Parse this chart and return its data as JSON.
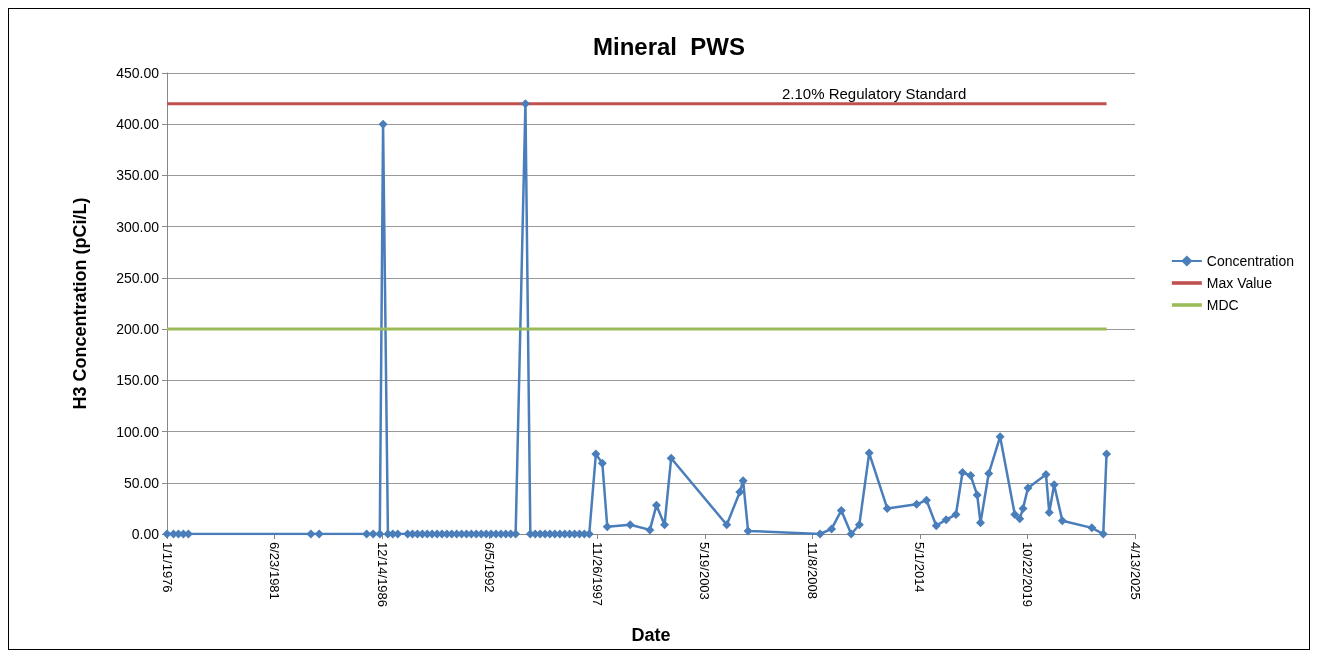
{
  "chart_data": {
    "type": "line",
    "title": "Mineral  PWS",
    "xlabel": "Date",
    "ylabel": "H3 Concentration (pCi/L)",
    "xlim": [
      "1976-01-01",
      "2025-04-13"
    ],
    "xticks": [
      {
        "value": "1976-01-01",
        "label": "1/1/1976"
      },
      {
        "value": "1981-06-23",
        "label": "6/23/1981"
      },
      {
        "value": "1986-12-14",
        "label": "12/14/1986"
      },
      {
        "value": "1992-06-05",
        "label": "6/5/1992"
      },
      {
        "value": "1997-11-26",
        "label": "11/26/1997"
      },
      {
        "value": "2003-05-19",
        "label": "5/19/2003"
      },
      {
        "value": "2008-11-08",
        "label": "11/8/2008"
      },
      {
        "value": "2014-05-01",
        "label": "5/1/2014"
      },
      {
        "value": "2019-10-22",
        "label": "10/22/2019"
      },
      {
        "value": "2025-04-13",
        "label": "4/13/2025"
      }
    ],
    "ylim": [
      0,
      450
    ],
    "yticks": [
      {
        "value": 0,
        "label": "0.00"
      },
      {
        "value": 50,
        "label": "50.00"
      },
      {
        "value": 100,
        "label": "100.00"
      },
      {
        "value": 150,
        "label": "150.00"
      },
      {
        "value": 200,
        "label": "200.00"
      },
      {
        "value": 250,
        "label": "250.00"
      },
      {
        "value": 300,
        "label": "300.00"
      },
      {
        "value": 350,
        "label": "350.00"
      },
      {
        "value": 400,
        "label": "400.00"
      },
      {
        "value": 450,
        "label": "450.00"
      }
    ],
    "grid": "y",
    "legend": "right",
    "annotations": [
      {
        "text": "2.10% Regulatory Standard",
        "x": "2012-01",
        "y": 420
      }
    ],
    "series": [
      {
        "name": "Concentration",
        "color": "#4a7ebb",
        "marker": "diamond",
        "x": [
          "1976-01",
          "1976-05",
          "1976-08",
          "1976-11",
          "1977-02",
          "1983-05",
          "1983-10",
          "1986-03",
          "1986-07",
          "1986-11",
          "1987-01",
          "1987-04",
          "1987-07",
          "1987-10",
          "1988-04",
          "1988-07",
          "1988-10",
          "1989-01",
          "1989-04",
          "1989-07",
          "1989-10",
          "1990-01",
          "1990-04",
          "1990-07",
          "1990-10",
          "1991-01",
          "1991-04",
          "1991-07",
          "1991-10",
          "1992-01",
          "1992-04",
          "1992-07",
          "1992-10",
          "1993-01",
          "1993-04",
          "1993-07",
          "1993-10",
          "1994-04",
          "1994-07",
          "1994-10",
          "1995-01",
          "1995-04",
          "1995-07",
          "1995-10",
          "1996-01",
          "1996-04",
          "1996-07",
          "1996-10",
          "1997-01",
          "1997-04",
          "1997-07",
          "1997-11",
          "1998-03",
          "1998-06",
          "1999-08",
          "2000-08",
          "2000-12",
          "2001-05",
          "2001-09",
          "2004-07",
          "2005-03",
          "2005-05",
          "2005-08",
          "2009-04",
          "2009-11",
          "2010-05",
          "2010-11",
          "2011-04",
          "2011-10",
          "2012-09",
          "2014-03",
          "2014-09",
          "2015-03",
          "2015-09",
          "2016-03",
          "2016-07",
          "2016-12",
          "2017-04",
          "2017-06",
          "2017-11",
          "2018-06",
          "2019-03",
          "2019-06",
          "2019-08",
          "2019-11",
          "2020-10",
          "2020-12",
          "2021-03",
          "2021-08",
          "2023-02",
          "2023-09",
          "2023-11"
        ],
        "values": [
          0,
          0,
          0,
          0,
          0,
          0,
          0,
          0,
          0,
          0,
          400,
          0,
          0,
          0,
          0,
          0,
          0,
          0,
          0,
          0,
          0,
          0,
          0,
          0,
          0,
          0,
          0,
          0,
          0,
          0,
          0,
          0,
          0,
          0,
          0,
          0,
          0,
          420,
          0,
          0,
          0,
          0,
          0,
          0,
          0,
          0,
          0,
          0,
          0,
          0,
          0,
          78,
          69,
          7,
          9,
          4,
          28,
          9,
          74,
          9,
          41,
          52,
          3,
          0,
          5,
          23,
          0,
          9,
          79,
          25,
          29,
          33,
          8,
          14,
          19,
          60,
          57,
          38,
          11,
          59,
          95,
          19,
          15,
          25,
          45,
          58,
          21,
          48,
          13,
          6,
          0,
          78
        ]
      },
      {
        "name": "Max Value",
        "color": "#c0504d",
        "marker": "none",
        "x": [
          "1976-01",
          "2023-11"
        ],
        "values": [
          420,
          420
        ]
      },
      {
        "name": "MDC",
        "color": "#9bbb59",
        "marker": "none",
        "x": [
          "1976-01",
          "2023-11"
        ],
        "values": [
          200,
          200
        ]
      }
    ]
  }
}
